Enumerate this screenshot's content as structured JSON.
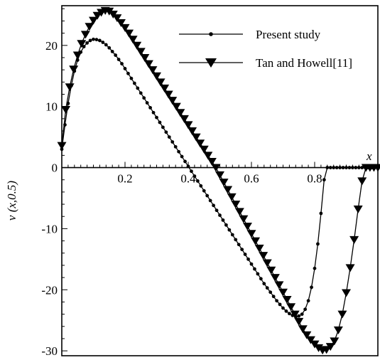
{
  "chart_data": {
    "type": "line",
    "xlabel": "x",
    "ylabel": "v (x,0.5)",
    "xlim": [
      0,
      1
    ],
    "ylim": [
      -30.8,
      26.5
    ],
    "x_ticks": [
      0.2,
      0.4,
      0.6,
      0.8
    ],
    "x_tick_labels": [
      "0.2",
      "0.4",
      "0.6",
      "0.8"
    ],
    "y_ticks": [
      20,
      10,
      0,
      -10,
      -20,
      -30
    ],
    "y_tick_labels": [
      "20",
      "10",
      "0",
      "-10",
      "-20",
      "-30"
    ],
    "legend_position": "top-right",
    "grid": false,
    "series": [
      {
        "name": "Present study",
        "marker": "circle",
        "x": [
          0,
          0.01,
          0.02,
          0.03,
          0.04,
          0.05,
          0.06,
          0.07,
          0.08,
          0.09,
          0.1,
          0.11,
          0.12,
          0.13,
          0.14,
          0.15,
          0.16,
          0.17,
          0.18,
          0.19,
          0.2,
          0.21,
          0.22,
          0.23,
          0.24,
          0.25,
          0.26,
          0.27,
          0.28,
          0.29,
          0.3,
          0.31,
          0.32,
          0.33,
          0.34,
          0.35,
          0.36,
          0.37,
          0.38,
          0.39,
          0.4,
          0.41,
          0.42,
          0.43,
          0.44,
          0.45,
          0.46,
          0.47,
          0.48,
          0.49,
          0.5,
          0.51,
          0.52,
          0.53,
          0.54,
          0.55,
          0.56,
          0.57,
          0.58,
          0.59,
          0.6,
          0.61,
          0.62,
          0.63,
          0.64,
          0.65,
          0.66,
          0.67,
          0.68,
          0.69,
          0.7,
          0.71,
          0.72,
          0.73,
          0.74,
          0.75,
          0.76,
          0.77,
          0.78,
          0.79,
          0.8,
          0.81,
          0.82,
          0.83,
          0.84,
          0.85,
          0.86,
          0.87,
          0.88,
          0.89,
          0.9,
          0.91,
          0.92,
          0.93,
          0.94,
          0.95,
          0.96,
          0.97,
          0.98,
          0.99,
          1.0
        ],
        "y": [
          3,
          7,
          10.5,
          13.4,
          15.8,
          17.6,
          18.9,
          19.8,
          20.4,
          20.8,
          21.0,
          20.95,
          20.8,
          20.5,
          20.1,
          19.6,
          19.0,
          18.4,
          17.7,
          17.0,
          16.2,
          15.4,
          14.6,
          13.8,
          13.0,
          12.2,
          11.4,
          10.6,
          9.8,
          9.0,
          8.2,
          7.4,
          6.6,
          5.8,
          5.0,
          4.2,
          3.4,
          2.6,
          1.8,
          1.0,
          0.2,
          -0.6,
          -1.4,
          -2.2,
          -3.0,
          -3.8,
          -4.6,
          -5.4,
          -6.2,
          -7.0,
          -7.8,
          -8.6,
          -9.4,
          -10.2,
          -11.0,
          -11.8,
          -12.6,
          -13.4,
          -14.2,
          -15.0,
          -15.8,
          -16.6,
          -17.4,
          -18.2,
          -19.0,
          -19.7,
          -20.4,
          -21.1,
          -21.8,
          -22.4,
          -23.0,
          -23.5,
          -23.9,
          -24.2,
          -24.4,
          -24.3,
          -24.0,
          -23.2,
          -21.8,
          -19.6,
          -16.5,
          -12.5,
          -7.5,
          -2.0,
          0,
          0,
          0,
          0,
          0,
          0,
          0,
          0,
          0,
          0,
          0,
          0,
          0,
          0,
          0,
          0,
          0
        ]
      },
      {
        "name": "Tan and Howell[11]",
        "marker": "triangle-down",
        "x": [
          0.0,
          0.0125,
          0.025,
          0.0375,
          0.05,
          0.0625,
          0.075,
          0.0875,
          0.1,
          0.1125,
          0.125,
          0.1375,
          0.15,
          0.1625,
          0.175,
          0.1875,
          0.2,
          0.2125,
          0.225,
          0.2375,
          0.25,
          0.2625,
          0.275,
          0.2875,
          0.3,
          0.3125,
          0.325,
          0.3375,
          0.35,
          0.3625,
          0.375,
          0.3875,
          0.4,
          0.4125,
          0.425,
          0.4375,
          0.45,
          0.4625,
          0.475,
          0.4875,
          0.5,
          0.5125,
          0.525,
          0.5375,
          0.55,
          0.5625,
          0.575,
          0.5875,
          0.6,
          0.6125,
          0.625,
          0.6375,
          0.65,
          0.6625,
          0.675,
          0.6875,
          0.7,
          0.7125,
          0.725,
          0.7375,
          0.75,
          0.7625,
          0.775,
          0.7875,
          0.8,
          0.8125,
          0.825,
          0.8375,
          0.85,
          0.8625,
          0.875,
          0.8875,
          0.9,
          0.9125,
          0.925,
          0.9375,
          0.95,
          0.9625,
          0.975,
          0.9875,
          1.0
        ],
        "y": [
          3.6,
          9.5,
          13.2,
          16.1,
          18.4,
          20.3,
          21.8,
          23.1,
          24.1,
          24.9,
          25.4,
          25.7,
          25.6,
          25.1,
          24.5,
          23.7,
          22.9,
          22.0,
          21.0,
          20.0,
          19.0,
          18.0,
          17.0,
          16.0,
          15.0,
          14.0,
          13.0,
          12.0,
          11.0,
          10.0,
          9.0,
          8.0,
          7.0,
          6.0,
          5.0,
          4.0,
          3.0,
          2.0,
          1.0,
          0.0,
          -1.2,
          -2.4,
          -3.6,
          -4.8,
          -6.0,
          -7.2,
          -8.4,
          -9.6,
          -10.8,
          -12.0,
          -13.2,
          -14.4,
          -15.6,
          -16.8,
          -18.0,
          -19.2,
          -20.4,
          -21.6,
          -22.8,
          -24.0,
          -25.2,
          -26.4,
          -27.4,
          -28.2,
          -28.9,
          -29.5,
          -29.9,
          -29.8,
          -29.3,
          -28.4,
          -26.6,
          -24.0,
          -20.5,
          -16.4,
          -11.8,
          -6.8,
          -2.2,
          0,
          0,
          0,
          0
        ]
      }
    ]
  }
}
